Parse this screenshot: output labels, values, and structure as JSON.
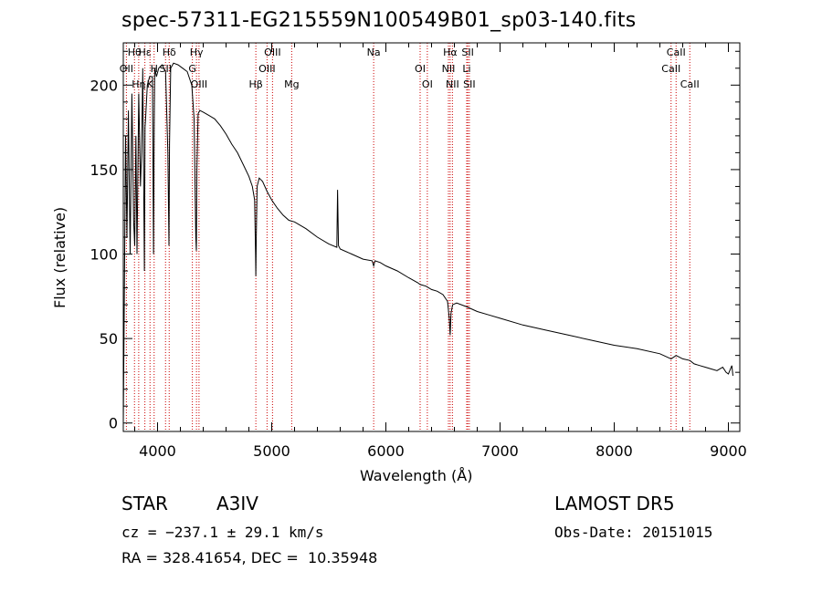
{
  "chart_data": {
    "type": "line",
    "title": "spec-57311-EG215559N100549B01_sp03-140.fits",
    "xlabel": "Wavelength (Å)",
    "ylabel": "Flux (relative)",
    "xlim": [
      3700,
      9100
    ],
    "ylim": [
      -5,
      225
    ],
    "x_ticks": [
      4000,
      5000,
      6000,
      7000,
      8000,
      9000
    ],
    "y_ticks": [
      0,
      50,
      100,
      150,
      200
    ],
    "grid": false,
    "series": [
      {
        "x": [
          3700,
          3705,
          3712,
          3720,
          3732,
          3745,
          3760,
          3775,
          3790,
          3800,
          3810,
          3820,
          3835,
          3850,
          3860,
          3870,
          3885,
          3890,
          3895,
          3910,
          3930,
          3955,
          3965,
          3970,
          3975,
          3990,
          4010,
          4040,
          4070,
          4090,
          4100,
          4105,
          4115,
          4140,
          4180,
          4220,
          4260,
          4300,
          4320,
          4335,
          4340,
          4345,
          4355,
          4370,
          4400,
          4450,
          4500,
          4550,
          4600,
          4650,
          4700,
          4750,
          4800,
          4830,
          4850,
          4858,
          4861,
          4865,
          4872,
          4890,
          4920,
          4960,
          5000,
          5050,
          5100,
          5150,
          5200,
          5300,
          5400,
          5500,
          5570,
          5577,
          5585,
          5600,
          5700,
          5800,
          5880,
          5893,
          5905,
          5950,
          6000,
          6100,
          6200,
          6280,
          6300,
          6350,
          6400,
          6450,
          6500,
          6540,
          6555,
          6563,
          6570,
          6585,
          6620,
          6700,
          6800,
          6900,
          7000,
          7200,
          7400,
          7600,
          7800,
          8000,
          8200,
          8400,
          8498,
          8542,
          8600,
          8662,
          8700,
          8750,
          8800,
          8850,
          8900,
          8950,
          8980,
          9000,
          9030,
          9040
        ],
        "y": [
          0,
          40,
          100,
          170,
          110,
          185,
          100,
          195,
          120,
          105,
          170,
          100,
          195,
          140,
          160,
          210,
          90,
          175,
          180,
          200,
          205,
          205,
          100,
          175,
          210,
          205,
          210,
          212,
          208,
          160,
          105,
          165,
          210,
          213,
          212,
          210,
          208,
          200,
          180,
          110,
          102,
          150,
          183,
          185,
          184,
          182,
          180,
          176,
          171,
          165,
          160,
          153,
          146,
          140,
          132,
          100,
          87,
          110,
          140,
          145,
          143,
          137,
          132,
          127,
          123,
          120,
          119,
          115,
          110,
          106,
          104,
          138,
          105,
          103,
          100,
          97,
          96,
          93,
          96,
          95,
          93,
          90,
          86,
          83,
          82,
          81,
          79,
          78,
          76,
          72,
          62,
          52,
          65,
          70,
          71,
          69,
          66,
          64,
          62,
          58,
          55,
          52,
          49,
          46,
          44,
          41,
          38,
          40,
          38,
          37,
          35,
          34,
          33,
          32,
          31,
          33,
          30,
          29,
          34,
          28
        ]
      }
    ],
    "line_markers": [
      {
        "label": "Hθ",
        "wave": 3798
      },
      {
        "label": "H",
        "wave": 3970
      },
      {
        "label": "K",
        "wave": 3934
      },
      {
        "label": "Hδ",
        "wave": 4102
      },
      {
        "label": "OII",
        "wave": 3727
      },
      {
        "label": "Hη",
        "wave": 3835
      },
      {
        "label": "Hε",
        "wave": 3889
      },
      {
        "label": "SII",
        "wave": 4070
      },
      {
        "label": "OIII",
        "wave": 4363
      },
      {
        "label": "Hγ",
        "wave": 4341
      },
      {
        "label": "G",
        "wave": 4305
      },
      {
        "label": "Hβ",
        "wave": 4861
      },
      {
        "label": "OIII",
        "wave": 5007
      },
      {
        "label": "OIII",
        "wave": 4959
      },
      {
        "label": "Mg",
        "wave": 5175
      },
      {
        "label": "Na",
        "wave": 5893
      },
      {
        "label": "OI",
        "wave": 6300
      },
      {
        "label": "OI",
        "wave": 6363
      },
      {
        "label": "Hα",
        "wave": 6563
      },
      {
        "label": "NII",
        "wave": 6548
      },
      {
        "label": "NII",
        "wave": 6583
      },
      {
        "label": "SII",
        "wave": 6717
      },
      {
        "label": "Li",
        "wave": 6708
      },
      {
        "label": "SII",
        "wave": 6731
      },
      {
        "label": "CaII",
        "wave": 8542
      },
      {
        "label": "CaII",
        "wave": 8498
      },
      {
        "label": "CaII",
        "wave": 8662
      }
    ]
  },
  "info": {
    "star_label": "STAR",
    "class_label": "A3IV",
    "survey": "LAMOST DR5",
    "cz": "cz = −237.1 ± 29.1 km/s",
    "obs_date": "Obs-Date: 20151015",
    "coords": "RA = 328.41654, DEC =  10.35948"
  },
  "colors": {
    "spectrum": "#000000",
    "line_marker": "#cc0000",
    "background": "#ffffff"
  }
}
